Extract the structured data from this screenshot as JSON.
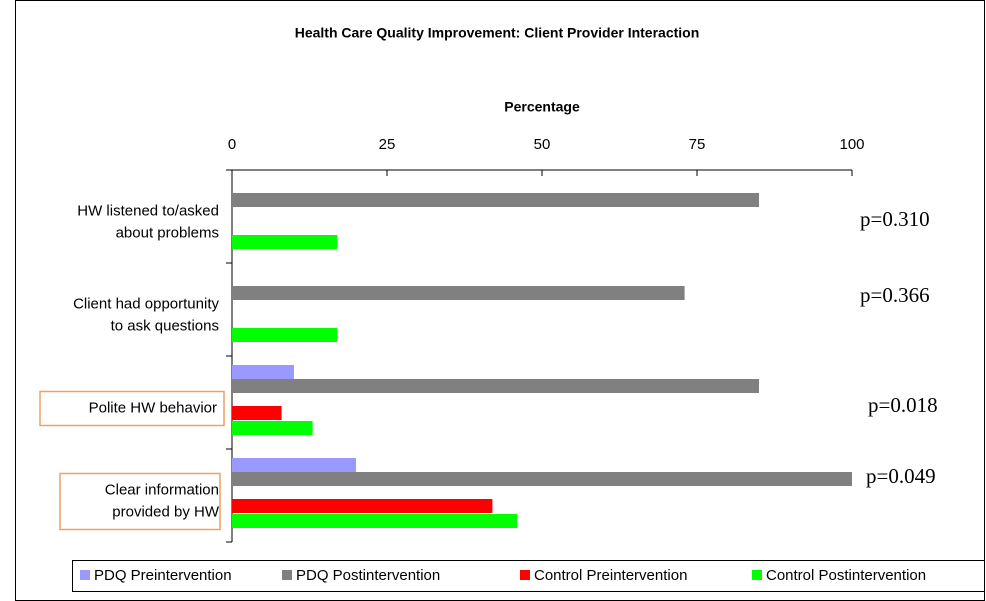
{
  "chart_data": {
    "type": "bar",
    "orientation": "horizontal",
    "title": "Health Care Quality Improvement: Client Provider Interaction",
    "xlabel": "Percentage",
    "categories": [
      [
        "HW listened to/asked",
        "about problems"
      ],
      [
        "Client had opportunity",
        "to ask questions"
      ],
      [
        "Polite HW behavior"
      ],
      [
        "Clear information",
        "provided by HW"
      ]
    ],
    "highlight": [
      false,
      false,
      true,
      true
    ],
    "highlight_color": "#f0a060",
    "series": [
      {
        "name": "PDQ Preintervention",
        "color": "#9999ff",
        "values": [
          0,
          0,
          10,
          20
        ]
      },
      {
        "name": "PDQ Postintervention",
        "color": "#808080",
        "values": [
          85,
          73,
          85,
          100
        ]
      },
      {
        "name": "Control Preintervention",
        "color": "#ff0000",
        "values": [
          0,
          0,
          8,
          42
        ]
      },
      {
        "name": "Control Postintervention",
        "color": "#00ff00",
        "values": [
          17,
          17,
          13,
          46
        ]
      }
    ],
    "annotations": [
      "p=0.310",
      "p=0.366",
      "p=0.018",
      "p=0.049"
    ],
    "xlim": [
      0,
      100
    ],
    "xticks": [
      0,
      25,
      50,
      75,
      100
    ],
    "grid": false,
    "legend": "bottom"
  }
}
